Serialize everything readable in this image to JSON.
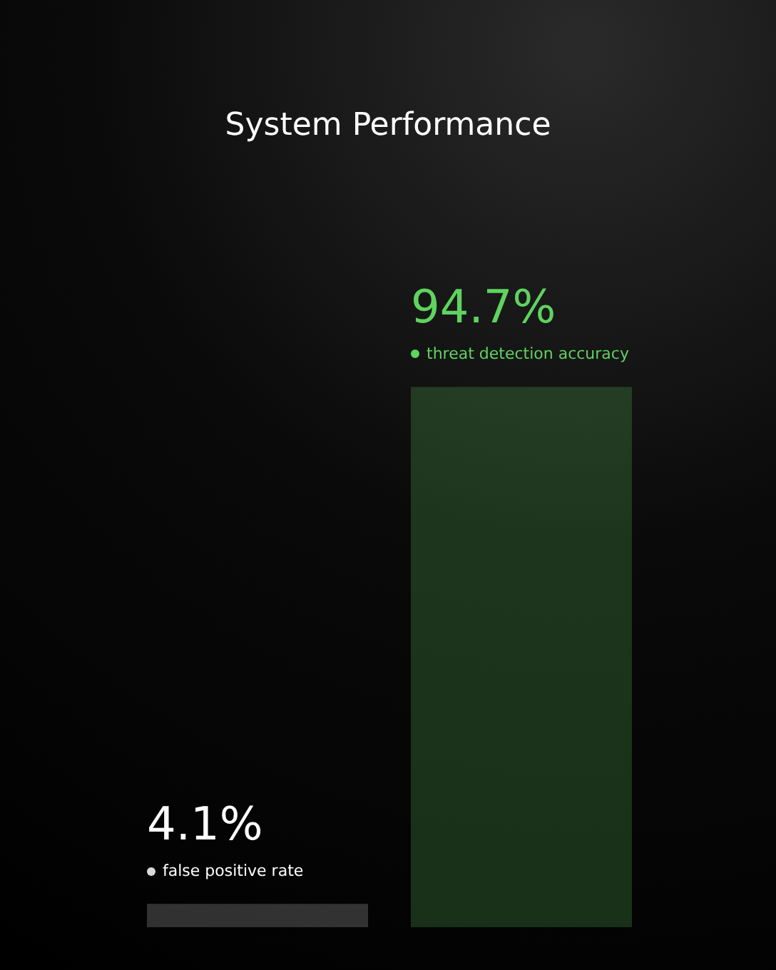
{
  "chart_data": {
    "type": "bar",
    "title": "System Performance",
    "categories": [
      "false positive rate",
      "threat detection accuracy"
    ],
    "values": [
      4.1,
      94.7
    ],
    "colors": [
      "#d9d9d9",
      "#5fd35f"
    ],
    "value_labels": [
      "4.1%",
      "94.7%"
    ],
    "tick_labels": false,
    "grid": false
  }
}
